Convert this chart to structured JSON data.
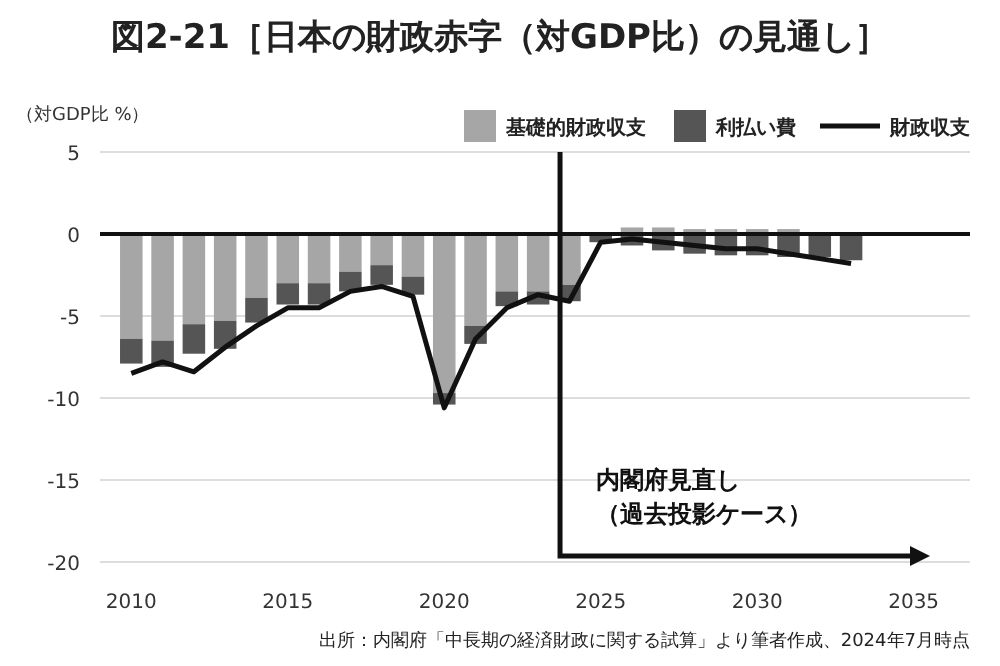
{
  "chart_data": {
    "type": "bar",
    "stacked": true,
    "title": "図2-21［日本の財政赤字（対GDP比）の見通し］",
    "ylabel": "（対GDP比 %）",
    "x": [
      2010,
      2011,
      2012,
      2013,
      2014,
      2015,
      2016,
      2017,
      2018,
      2019,
      2020,
      2021,
      2022,
      2023,
      2024,
      2025,
      2026,
      2027,
      2028,
      2029,
      2030,
      2031,
      2032,
      2033
    ],
    "series": [
      {
        "name": "基礎的財政収支",
        "color": "#a6a6a6",
        "values": [
          -6.4,
          -6.5,
          -5.5,
          -5.3,
          -3.9,
          -3.0,
          -3.0,
          -2.3,
          -1.9,
          -2.6,
          -9.7,
          -5.6,
          -3.5,
          -3.5,
          -3.1,
          0,
          0.4,
          0.4,
          0.3,
          0.3,
          0.3,
          0.3,
          0,
          0
        ]
      },
      {
        "name": "利払い費",
        "color": "#555555",
        "values": [
          -1.5,
          -1.6,
          -1.8,
          -1.7,
          -1.5,
          -1.3,
          -1.3,
          -1.2,
          -1.2,
          -1.1,
          -0.7,
          -1.1,
          -0.9,
          -0.8,
          -1.0,
          -0.5,
          -0.7,
          -1.0,
          -1.2,
          -1.3,
          -1.3,
          -1.4,
          -1.4,
          -1.6
        ]
      },
      {
        "name": "財政収支",
        "type": "line",
        "color": "#111111",
        "values": [
          -8.5,
          -7.8,
          -8.4,
          -6.9,
          -5.6,
          -4.5,
          -4.5,
          -3.5,
          -3.2,
          -3.8,
          -10.6,
          -6.4,
          -4.5,
          -3.7,
          -4.1,
          -0.5,
          -0.3,
          -0.5,
          -0.7,
          -0.9,
          -0.9,
          -1.2,
          -1.5,
          -1.8
        ]
      }
    ],
    "xlim": [
      2009,
      2036.8
    ],
    "xticks": [
      2010,
      2015,
      2020,
      2025,
      2030,
      2035
    ],
    "ylim": [
      -20,
      5
    ],
    "yticks": [
      5,
      0,
      -5,
      -10,
      -15,
      -20
    ],
    "grid": "y",
    "legend": "top right",
    "ref_lines": [
      {
        "axis": "y",
        "value": 0,
        "color": "#111111"
      },
      {
        "axis": "x",
        "value": 2023.7,
        "label": "内閣府見直し（過去投影ケース）",
        "color": "#111111"
      }
    ],
    "annotations": [
      "出所：内閣府「中長期の経済財政に関する試算」より筆者作成、2024年7月時点"
    ]
  }
}
